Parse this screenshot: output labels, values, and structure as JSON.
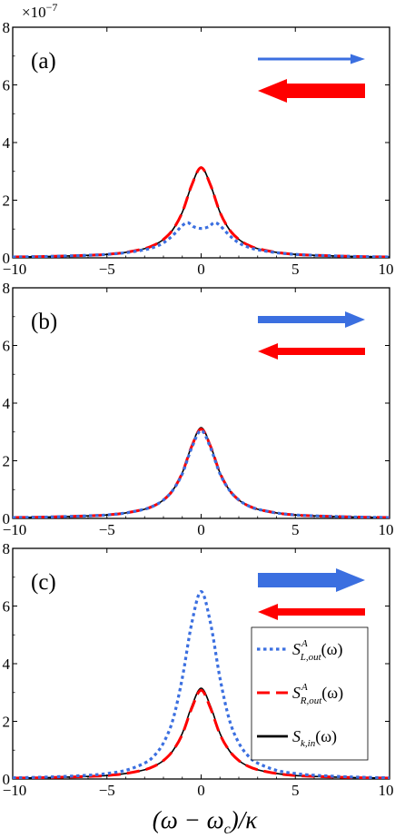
{
  "chart_data": [
    {
      "type": "line",
      "panel_label": "(a)",
      "exponent_label": "×10",
      "exponent_power": "−7",
      "xlim": [
        -10,
        10
      ],
      "ylim": [
        0,
        8
      ],
      "xticks": [
        "−10",
        "−5",
        "0",
        "5",
        "10"
      ],
      "yticks": [
        "0",
        "2",
        "4",
        "6",
        "8"
      ],
      "arrows": [
        {
          "direction": "right",
          "color": "#3b6fe0",
          "strength": 1
        },
        {
          "direction": "left",
          "color": "#ff0000",
          "strength": 3
        }
      ],
      "series": [
        {
          "key": "S_k_in",
          "color": "#000000",
          "style": "solid",
          "x": [
            -10,
            -8,
            -6,
            -5,
            -4,
            -3,
            -2.5,
            -2,
            -1.5,
            -1,
            -0.5,
            0,
            0.5,
            1,
            1.5,
            2,
            2.5,
            3,
            4,
            5,
            6,
            8,
            10
          ],
          "y": [
            0.03,
            0.05,
            0.09,
            0.12,
            0.19,
            0.32,
            0.44,
            0.64,
            0.98,
            1.58,
            2.52,
            3.15,
            2.52,
            1.58,
            0.98,
            0.64,
            0.44,
            0.32,
            0.19,
            0.12,
            0.09,
            0.05,
            0.03
          ]
        },
        {
          "key": "S_R_out",
          "color": "#ff0000",
          "style": "dashed",
          "x": [
            -10,
            -8,
            -6,
            -5,
            -4,
            -3,
            -2.5,
            -2,
            -1.5,
            -1,
            -0.5,
            0,
            0.5,
            1,
            1.5,
            2,
            2.5,
            3,
            4,
            5,
            6,
            8,
            10
          ],
          "y": [
            0.03,
            0.05,
            0.09,
            0.12,
            0.19,
            0.32,
            0.44,
            0.64,
            0.98,
            1.58,
            2.52,
            3.13,
            2.52,
            1.58,
            0.98,
            0.64,
            0.44,
            0.32,
            0.19,
            0.12,
            0.09,
            0.05,
            0.03
          ]
        },
        {
          "key": "S_L_out",
          "color": "#3b6fe0",
          "style": "dotted",
          "x": [
            -10,
            -8,
            -6,
            -5,
            -4,
            -3,
            -2.5,
            -2,
            -1.5,
            -1,
            -0.7,
            -0.4,
            0,
            0.4,
            0.7,
            1,
            1.5,
            2,
            2.5,
            3,
            4,
            5,
            6,
            8,
            10
          ],
          "y": [
            0.03,
            0.05,
            0.09,
            0.12,
            0.18,
            0.28,
            0.37,
            0.52,
            0.78,
            1.12,
            1.22,
            1.08,
            1.02,
            1.08,
            1.22,
            1.12,
            0.78,
            0.52,
            0.37,
            0.28,
            0.18,
            0.12,
            0.09,
            0.05,
            0.03
          ]
        }
      ]
    },
    {
      "type": "line",
      "panel_label": "(b)",
      "xlim": [
        -10,
        10
      ],
      "ylim": [
        0,
        8
      ],
      "xticks": [
        "−10",
        "−5",
        "0",
        "5",
        "10"
      ],
      "yticks": [
        "0",
        "2",
        "4",
        "6",
        "8"
      ],
      "arrows": [
        {
          "direction": "right",
          "color": "#3b6fe0",
          "strength": 2
        },
        {
          "direction": "left",
          "color": "#ff0000",
          "strength": 2
        }
      ],
      "series": [
        {
          "key": "S_k_in",
          "color": "#000000",
          "style": "solid",
          "x": [
            -10,
            -8,
            -6,
            -5,
            -4,
            -3,
            -2.5,
            -2,
            -1.5,
            -1,
            -0.5,
            0,
            0.5,
            1,
            1.5,
            2,
            2.5,
            3,
            4,
            5,
            6,
            8,
            10
          ],
          "y": [
            0.03,
            0.05,
            0.09,
            0.12,
            0.19,
            0.32,
            0.44,
            0.64,
            0.98,
            1.58,
            2.52,
            3.15,
            2.52,
            1.58,
            0.98,
            0.64,
            0.44,
            0.32,
            0.19,
            0.12,
            0.09,
            0.05,
            0.03
          ]
        },
        {
          "key": "S_R_out",
          "color": "#ff0000",
          "style": "dashed",
          "x": [
            -10,
            -8,
            -6,
            -5,
            -4,
            -3,
            -2.5,
            -2,
            -1.5,
            -1,
            -0.5,
            0,
            0.5,
            1,
            1.5,
            2,
            2.5,
            3,
            4,
            5,
            6,
            8,
            10
          ],
          "y": [
            0.03,
            0.05,
            0.09,
            0.12,
            0.19,
            0.32,
            0.44,
            0.64,
            0.98,
            1.58,
            2.5,
            3.1,
            2.5,
            1.58,
            0.98,
            0.64,
            0.44,
            0.32,
            0.19,
            0.12,
            0.09,
            0.05,
            0.03
          ]
        },
        {
          "key": "S_L_out",
          "color": "#3b6fe0",
          "style": "dotted",
          "x": [
            -10,
            -8,
            -6,
            -5,
            -4,
            -3,
            -2.5,
            -2,
            -1.5,
            -1,
            -0.5,
            0,
            0.5,
            1,
            1.5,
            2,
            2.5,
            3,
            4,
            5,
            6,
            8,
            10
          ],
          "y": [
            0.03,
            0.05,
            0.09,
            0.12,
            0.19,
            0.32,
            0.44,
            0.64,
            0.98,
            1.55,
            2.45,
            3.05,
            2.45,
            1.55,
            0.98,
            0.64,
            0.44,
            0.32,
            0.19,
            0.12,
            0.09,
            0.05,
            0.03
          ]
        }
      ]
    },
    {
      "type": "line",
      "panel_label": "(c)",
      "xlim": [
        -10,
        10
      ],
      "ylim": [
        0,
        8
      ],
      "xticks": [
        "−10",
        "−5",
        "0",
        "5",
        "10"
      ],
      "yticks": [
        "0",
        "2",
        "4",
        "6",
        "8"
      ],
      "xlabel_parts": [
        "(ω − ω",
        "c",
        ")/κ"
      ],
      "arrows": [
        {
          "direction": "right",
          "color": "#3b6fe0",
          "strength": 3
        },
        {
          "direction": "left",
          "color": "#ff0000",
          "strength": 2
        }
      ],
      "legend_position": "bottom-right",
      "legend": [
        {
          "key": "S_L_out",
          "main": "S",
          "sup": "A",
          "sub": "L,out",
          "tail": "(ω)",
          "color": "#3b6fe0",
          "style": "dotted"
        },
        {
          "key": "S_R_out",
          "main": "S",
          "sup": "A",
          "sub": "R,out",
          "tail": "(ω)",
          "color": "#ff0000",
          "style": "dashed"
        },
        {
          "key": "S_k_in",
          "main": "S",
          "sup": "",
          "sub": "k,in",
          "tail": "(ω)",
          "color": "#000000",
          "style": "solid"
        }
      ],
      "series": [
        {
          "key": "S_k_in",
          "color": "#000000",
          "style": "solid",
          "x": [
            -10,
            -8,
            -6,
            -5,
            -4,
            -3,
            -2.5,
            -2,
            -1.5,
            -1,
            -0.5,
            0,
            0.5,
            1,
            1.5,
            2,
            2.5,
            3,
            4,
            5,
            6,
            8,
            10
          ],
          "y": [
            0.03,
            0.05,
            0.09,
            0.12,
            0.19,
            0.32,
            0.44,
            0.64,
            0.98,
            1.58,
            2.52,
            3.15,
            2.52,
            1.58,
            0.98,
            0.64,
            0.44,
            0.32,
            0.19,
            0.12,
            0.09,
            0.05,
            0.03
          ]
        },
        {
          "key": "S_R_out",
          "color": "#ff0000",
          "style": "dashed",
          "x": [
            -10,
            -8,
            -6,
            -5,
            -4,
            -3,
            -2.5,
            -2,
            -1.5,
            -1,
            -0.5,
            0,
            0.5,
            1,
            1.5,
            2,
            2.5,
            3,
            4,
            5,
            6,
            8,
            10
          ],
          "y": [
            0.03,
            0.05,
            0.09,
            0.12,
            0.19,
            0.32,
            0.44,
            0.64,
            0.98,
            1.55,
            2.45,
            3.08,
            2.45,
            1.55,
            0.98,
            0.64,
            0.44,
            0.32,
            0.19,
            0.12,
            0.09,
            0.05,
            0.03
          ]
        },
        {
          "key": "S_L_out",
          "color": "#3b6fe0",
          "style": "dotted",
          "x": [
            -10,
            -8,
            -6,
            -5,
            -4,
            -3,
            -2.5,
            -2,
            -1.5,
            -1,
            -0.5,
            0,
            0.5,
            1,
            1.5,
            2,
            2.5,
            3,
            4,
            5,
            6,
            8,
            10
          ],
          "y": [
            0.04,
            0.07,
            0.13,
            0.19,
            0.3,
            0.55,
            0.8,
            1.25,
            2.05,
            3.5,
            5.4,
            6.5,
            5.4,
            3.5,
            2.05,
            1.25,
            0.8,
            0.55,
            0.3,
            0.19,
            0.13,
            0.07,
            0.04
          ]
        }
      ]
    }
  ]
}
